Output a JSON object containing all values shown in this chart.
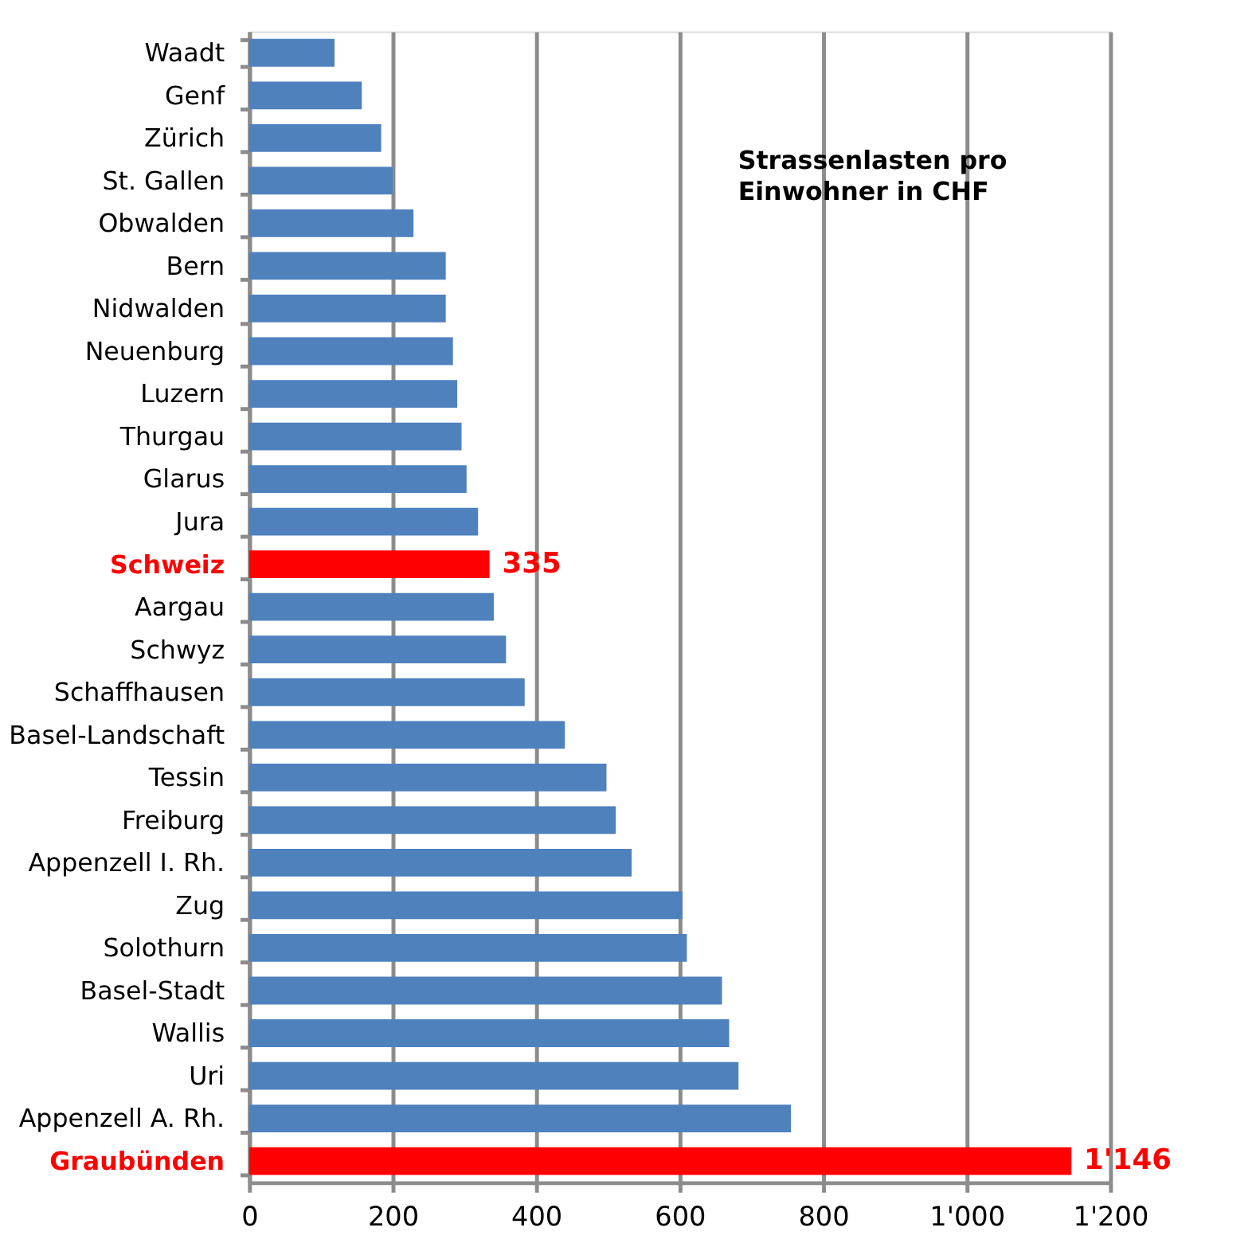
{
  "chart_data": {
    "type": "bar",
    "orientation": "horizontal",
    "annotations": [
      "Strassenlasten pro\nEinwohner in CHF"
    ],
    "categories": [
      "Waadt",
      "Genf",
      "Zürich",
      "St. Gallen",
      "Obwalden",
      "Bern",
      "Nidwalden",
      "Neuenburg",
      "Luzern",
      "Thurgau",
      "Glarus",
      "Jura",
      "Schweiz",
      "Aargau",
      "Schwyz",
      "Schaffhausen",
      "Basel-Landschaft",
      "Tessin",
      "Freiburg",
      "Appenzell I. Rh.",
      "Zug",
      "Solothurn",
      "Basel-Stadt",
      "Wallis",
      "Uri",
      "Appenzell A. Rh.",
      "Graubünden"
    ],
    "values": [
      119,
      157,
      184,
      200,
      229,
      274,
      274,
      284,
      290,
      296,
      303,
      319,
      335,
      341,
      358,
      384,
      440,
      498,
      511,
      533,
      604,
      610,
      659,
      669,
      682,
      755,
      1146
    ],
    "colors": [
      "#4f81bd",
      "#4f81bd",
      "#4f81bd",
      "#4f81bd",
      "#4f81bd",
      "#4f81bd",
      "#4f81bd",
      "#4f81bd",
      "#4f81bd",
      "#4f81bd",
      "#4f81bd",
      "#4f81bd",
      "#ff0000",
      "#4f81bd",
      "#4f81bd",
      "#4f81bd",
      "#4f81bd",
      "#4f81bd",
      "#4f81bd",
      "#4f81bd",
      "#4f81bd",
      "#4f81bd",
      "#4f81bd",
      "#4f81bd",
      "#4f81bd",
      "#4f81bd",
      "#ff0000"
    ],
    "value_labels": [
      null,
      null,
      null,
      null,
      null,
      null,
      null,
      null,
      null,
      null,
      null,
      null,
      "335",
      null,
      null,
      null,
      null,
      null,
      null,
      null,
      null,
      null,
      null,
      null,
      null,
      null,
      "1'146"
    ],
    "xlim": [
      0,
      1200
    ],
    "xticks": [
      0,
      200,
      400,
      600,
      800,
      {
        "value": 1000,
        "label": "1'000"
      },
      {
        "value": 1200,
        "label": "1'200"
      }
    ],
    "grid": "x"
  }
}
